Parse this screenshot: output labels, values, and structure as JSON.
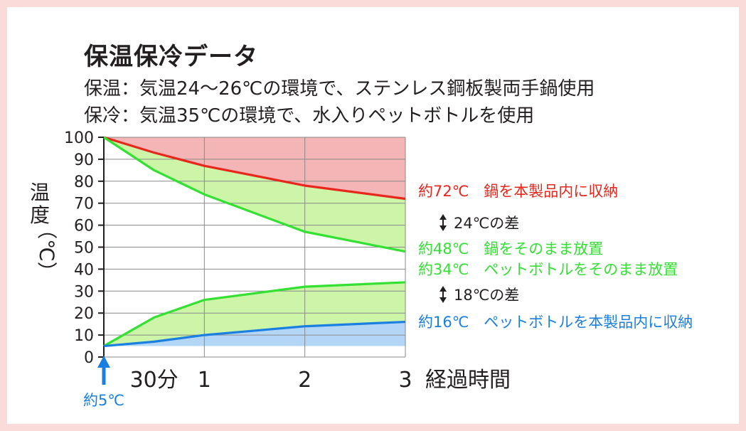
{
  "title": "保温保冷データ",
  "subtitles": [
    "保温：気温24〜26℃の環境で、ステンレス鋼板製両手鍋使用",
    "保冷：気温35℃の環境で、水入りペットボトルを使用"
  ],
  "colors": {
    "border": "#fbdada",
    "red": "#e8261c",
    "green": "#33e033",
    "blue": "#1a7fe0",
    "fill_red": "#f3b5b5",
    "fill_green": "#ccf5a8",
    "fill_blue": "#b3d6f7",
    "grid": "#8a8a8a"
  },
  "chart_data": {
    "type": "line",
    "title": "",
    "ylabel": "温度（℃）",
    "xlabel": "経過時間",
    "ylim": [
      0,
      100
    ],
    "xlim": [
      0,
      3
    ],
    "yticks": [
      "0",
      "10",
      "20",
      "30",
      "40",
      "50",
      "60",
      "70",
      "80",
      "90",
      "100"
    ],
    "xticks": [
      {
        "value": 0.5,
        "label": "30分"
      },
      {
        "value": 1,
        "label": "1"
      },
      {
        "value": 2,
        "label": "2"
      },
      {
        "value": 3,
        "label": "3"
      }
    ],
    "x": [
      0,
      0.5,
      1,
      2,
      3
    ],
    "series": [
      {
        "name": "鍋を本製品内に収納",
        "color": "#e8261c",
        "values": [
          100,
          93,
          87,
          78,
          72
        ],
        "end_label": "約72℃　鍋を本製品内に収納"
      },
      {
        "name": "鍋をそのまま放置",
        "color": "#33e033",
        "values": [
          100,
          85,
          74,
          57,
          48
        ],
        "end_label": "約48℃　鍋をそのまま放置"
      },
      {
        "name": "ペットボトルをそのまま放置",
        "color": "#33e033",
        "values": [
          5,
          18,
          26,
          32,
          34
        ],
        "end_label": "約34℃　ペットボトルをそのまま放置"
      },
      {
        "name": "ペットボトルを本製品内に収納",
        "color": "#1a7fe0",
        "values": [
          5,
          7,
          10,
          14,
          16
        ],
        "end_label": "約16℃　ペットボトルを本製品内に収納"
      }
    ],
    "annotations": {
      "diff_warm": "24℃の差",
      "diff_cold": "18℃の差",
      "start": "約5℃"
    }
  }
}
